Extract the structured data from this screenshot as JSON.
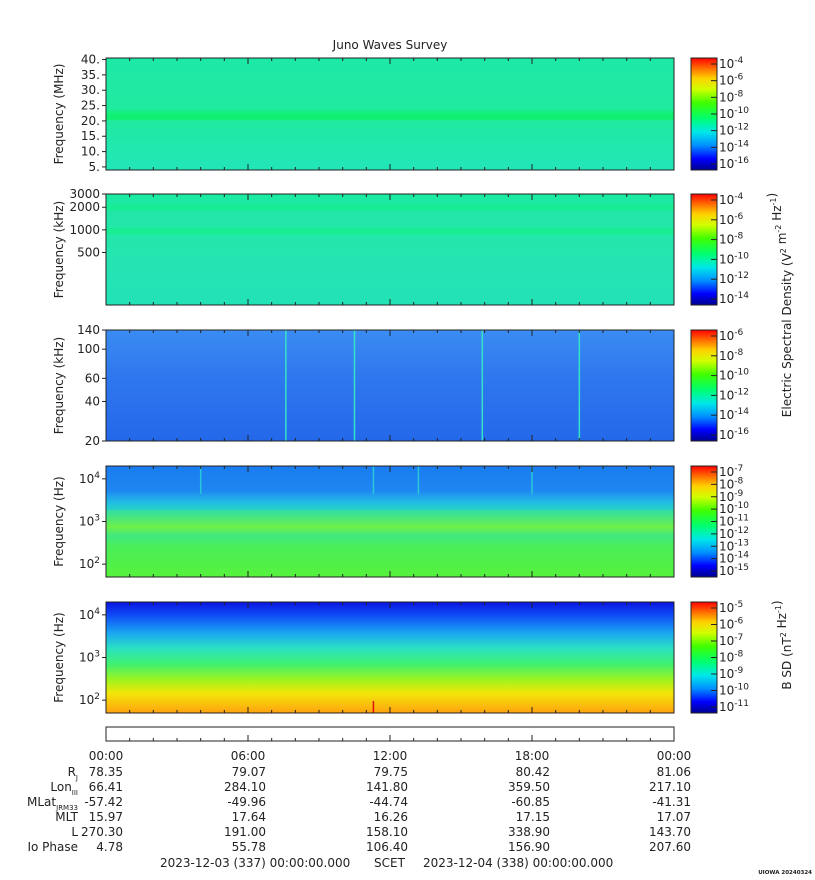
{
  "title": "Juno Waves Survey",
  "watermark": "UIOWA 20240324",
  "colors": {
    "background": "#ffffff",
    "axis": "#222222"
  },
  "chart_data": [
    {
      "type": "heatmap",
      "ylabel": "Frequency (MHz)",
      "ylim": [
        4,
        40.5
      ],
      "yscale": "linear",
      "y_ticks": [
        5,
        10,
        15,
        20,
        25,
        30,
        35,
        40
      ],
      "y_tick_labels": [
        "5.",
        "10.",
        "15.",
        "20.",
        "25.",
        "30.",
        "35.",
        "40."
      ],
      "zlim": [
        "1e-17",
        "1e-4"
      ],
      "colorbar_tick_labels": [
        "10^-4",
        "10^-6",
        "10^-8",
        "10^-10",
        "10^-12",
        "10^-14",
        "10^-16"
      ],
      "colorbar_title": "",
      "background_level": "1e-13",
      "bands": [
        {
          "y": 21.2,
          "level": "2e-12",
          "note": "persistent emission band"
        }
      ]
    },
    {
      "type": "heatmap",
      "ylabel": "Frequency (kHz)",
      "ylim": [
        100,
        3000
      ],
      "yscale": "log",
      "y_ticks": [
        500,
        1000,
        2000,
        3000
      ],
      "y_tick_labels": [
        "500",
        "1000",
        "2000",
        "3000"
      ],
      "zlim": [
        "1e-15",
        "1e-4"
      ],
      "colorbar_tick_labels": [
        "10^-4",
        "10^-6",
        "10^-8",
        "10^-10",
        "10^-12",
        "10^-14"
      ],
      "colorbar_title": "Electric Spectral Density (V^2 m^-2 Hz^-1)",
      "background_level": "1e-12",
      "bands": [
        {
          "y": 2000,
          "level": "1e-11"
        },
        {
          "y": 950,
          "level": "5e-12"
        }
      ]
    },
    {
      "type": "heatmap",
      "ylabel": "Frequency (kHz)",
      "ylim": [
        20,
        140
      ],
      "yscale": "log",
      "y_ticks": [
        20,
        40,
        60,
        100,
        140
      ],
      "y_tick_labels": [
        "20",
        "40",
        "60",
        "100",
        "140"
      ],
      "zlim": [
        "1e-16",
        "1e-6"
      ],
      "colorbar_tick_labels": [
        "10^-6",
        "10^-8",
        "10^-10",
        "10^-12",
        "10^-14",
        "10^-16"
      ],
      "colorbar_title": "",
      "background_level": "5e-14",
      "events_hours": [
        7.6,
        10.5,
        15.9,
        20.0
      ]
    },
    {
      "type": "heatmap",
      "ylabel": "Frequency (Hz)",
      "ylim": [
        50,
        20000
      ],
      "yscale": "log",
      "y_ticks": [
        100,
        1000,
        10000
      ],
      "y_tick_labels": [
        "10^2",
        "10^3",
        "10^4"
      ],
      "zlim": [
        "1e-15",
        "1e-7"
      ],
      "colorbar_tick_labels": [
        "10^-7",
        "10^-8",
        "10^-9",
        "10^-10",
        "10^-11",
        "10^-12",
        "10^-13",
        "10^-14",
        "10^-15"
      ],
      "colorbar_title": "",
      "background_level": "1e-11",
      "events_hours": [
        4.0,
        11.3,
        13.2,
        18.0
      ]
    },
    {
      "type": "heatmap",
      "ylabel": "Frequency (Hz)",
      "ylim": [
        50,
        20000
      ],
      "yscale": "log",
      "y_ticks": [
        100,
        1000,
        10000
      ],
      "y_tick_labels": [
        "10^2",
        "10^3",
        "10^4"
      ],
      "zlim": [
        "1e-11",
        "1e-4"
      ],
      "colorbar_tick_labels": [
        "10^-5",
        "10^-6",
        "10^-7",
        "10^-8",
        "10^-9",
        "10^-10",
        "10^-11"
      ],
      "colorbar_title": "B SD (nT^2 Hz^-1)",
      "background_level": "1e-8",
      "events_hours": [
        11.3
      ]
    }
  ],
  "time_axis": {
    "start_hour": 0,
    "end_hour": 24,
    "tick_hours": [
      0,
      6,
      12,
      18,
      24
    ],
    "tick_labels": [
      "00:00",
      "06:00",
      "12:00",
      "18:00",
      "00:00"
    ]
  },
  "ephemeris": [
    {
      "label": "R_J",
      "values": [
        "78.35",
        "79.07",
        "79.75",
        "80.42",
        "81.06"
      ]
    },
    {
      "label": "Lon_III",
      "values": [
        "66.41",
        "284.10",
        "141.80",
        "359.50",
        "217.10"
      ]
    },
    {
      "label": "MLat_JRM33",
      "values": [
        "-57.42",
        "-49.96",
        "-44.74",
        "-60.85",
        "-41.31"
      ]
    },
    {
      "label": "MLT",
      "values": [
        "15.97",
        "17.64",
        "16.26",
        "17.15",
        "17.07"
      ]
    },
    {
      "label": "L",
      "values": [
        "270.30",
        "191.00",
        "158.10",
        "338.90",
        "143.70"
      ]
    },
    {
      "label": "Io Phase",
      "values": [
        "4.78",
        "55.78",
        "106.40",
        "156.90",
        "207.60"
      ]
    }
  ],
  "footer": {
    "start": "2023-12-03 (337) 00:00:00.000",
    "scet": "SCET",
    "end": "2023-12-04 (338) 00:00:00.000"
  }
}
